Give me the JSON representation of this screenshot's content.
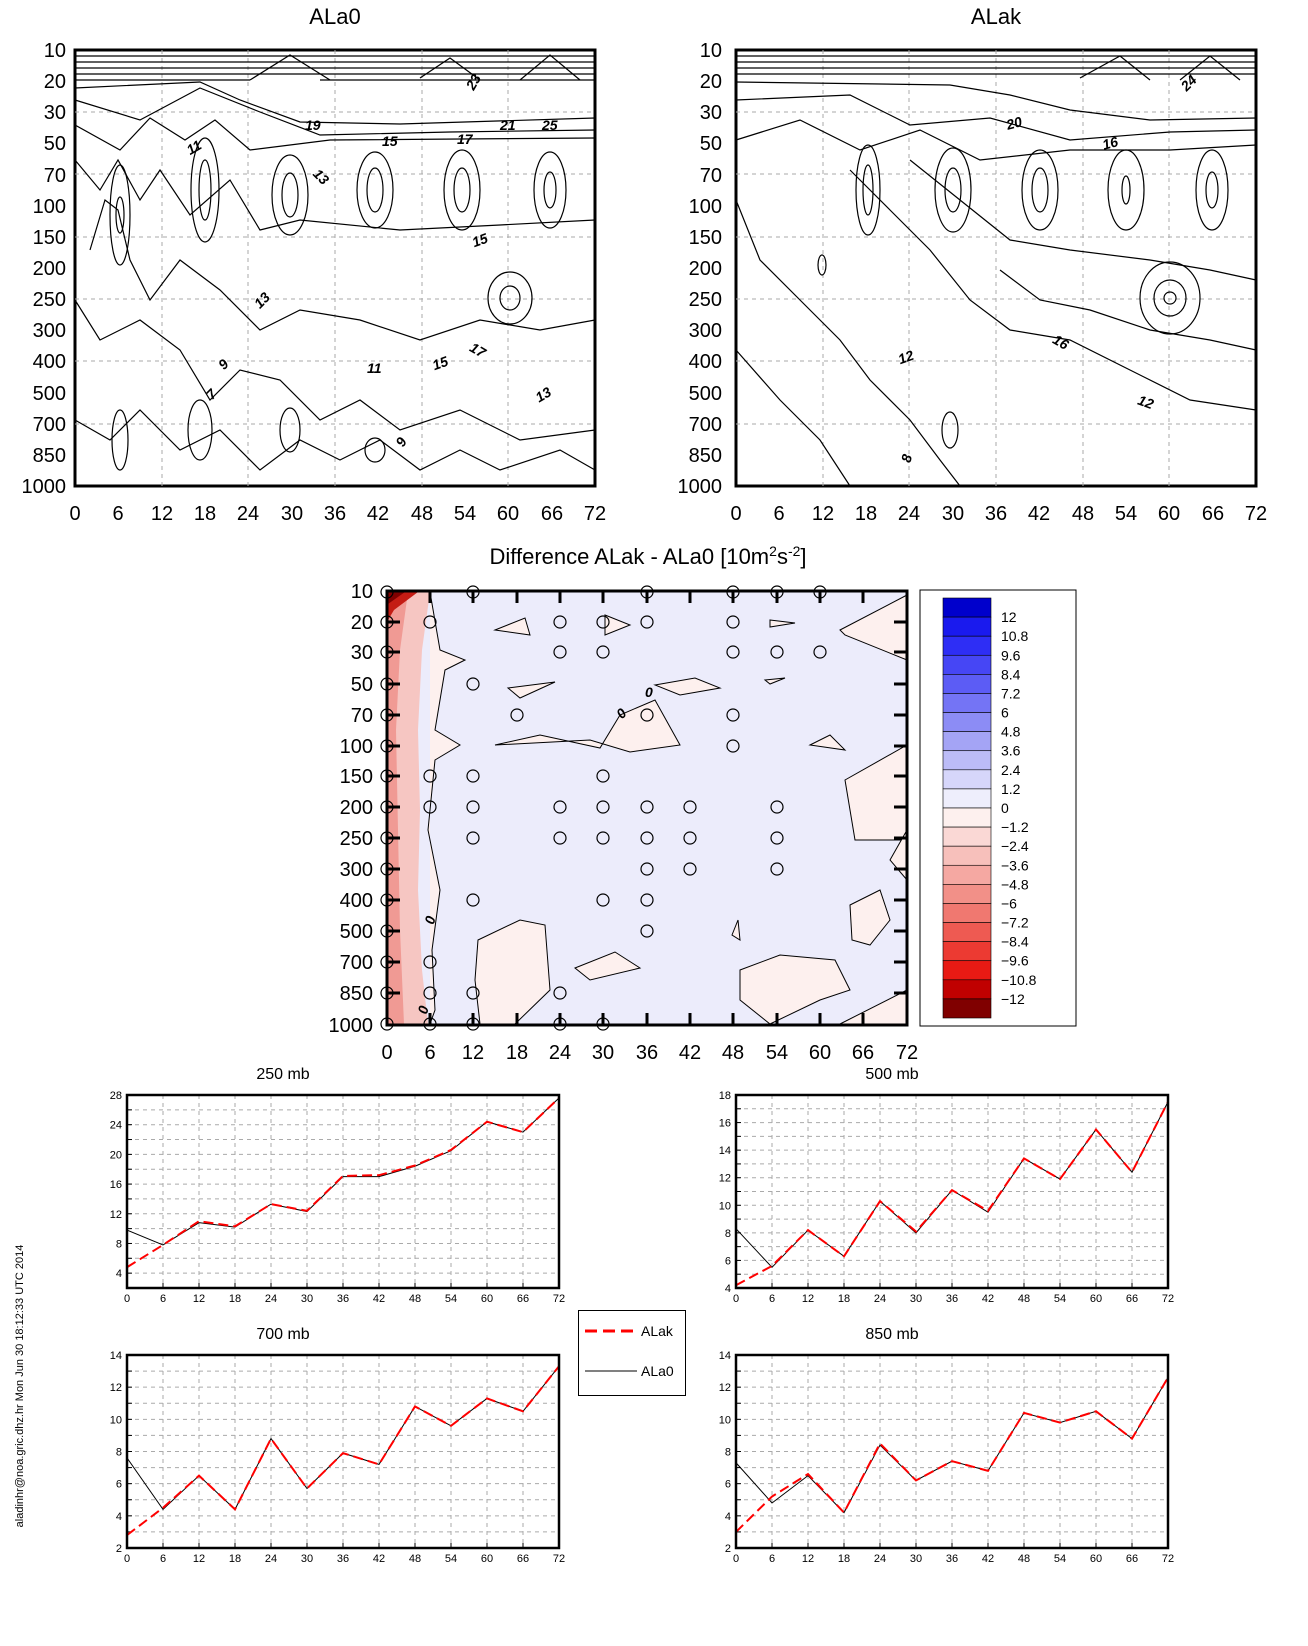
{
  "signature": "aladinhr@noa.gric.dhz.hr Mon Jun 30 18:12:33 UTC 2014",
  "contour_panels": [
    {
      "title": "ALa0",
      "x_ticks": [
        "0",
        "6",
        "12",
        "18",
        "24",
        "30",
        "36",
        "42",
        "48",
        "54",
        "60",
        "66",
        "72"
      ],
      "y_ticks": [
        "10",
        "20",
        "30",
        "50",
        "70",
        "100",
        "150",
        "200",
        "250",
        "300",
        "400",
        "500",
        "700",
        "850",
        "1000"
      ],
      "contour_labels": [
        "23",
        "19",
        "21",
        "25",
        "11",
        "15",
        "17",
        "13",
        "15",
        "13",
        "9",
        "7",
        "11",
        "15",
        "17",
        "13",
        "9"
      ]
    },
    {
      "title": "ALak",
      "x_ticks": [
        "0",
        "6",
        "12",
        "18",
        "24",
        "30",
        "36",
        "42",
        "48",
        "54",
        "60",
        "66",
        "72"
      ],
      "y_ticks": [
        "10",
        "20",
        "30",
        "50",
        "70",
        "100",
        "150",
        "200",
        "250",
        "300",
        "400",
        "500",
        "700",
        "850",
        "1000"
      ],
      "contour_labels": [
        "24",
        "20",
        "16",
        "12",
        "16",
        "12",
        "8"
      ]
    }
  ],
  "difference_panel": {
    "title": "Difference ALak - ALa0 [10m",
    "title_sup1": "2",
    "title_mid": "s",
    "title_sup2": "-2",
    "title_end": "]",
    "x_ticks": [
      "0",
      "6",
      "12",
      "18",
      "24",
      "30",
      "36",
      "42",
      "48",
      "54",
      "60",
      "66",
      "72"
    ],
    "y_ticks": [
      "10",
      "20",
      "30",
      "50",
      "70",
      "100",
      "150",
      "200",
      "250",
      "300",
      "400",
      "500",
      "700",
      "850",
      "1000"
    ],
    "contour_labels": [
      "0",
      "0",
      "0",
      "0"
    ],
    "colorbar_labels": [
      "12",
      "10.8",
      "9.6",
      "8.4",
      "7.2",
      "6",
      "4.8",
      "3.6",
      "2.4",
      "1.2",
      "0",
      "−1.2",
      "−2.4",
      "−3.6",
      "−4.8",
      "−6",
      "−7.2",
      "−8.4",
      "−9.6",
      "−10.8",
      "−12"
    ],
    "colorbar_colors": [
      "#0000cc",
      "#1a1aee",
      "#2e2ef5",
      "#4646f5",
      "#5c5cf5",
      "#7474f5",
      "#8c8cf5",
      "#a4a4f5",
      "#bcbcf7",
      "#d6d6fa",
      "#eeeefc",
      "#fdf0ee",
      "#fad8d5",
      "#f7c0bb",
      "#f5a8a2",
      "#f29088",
      "#f07870",
      "#ee5a52",
      "#ec3a32",
      "#e81a14",
      "#c00000",
      "#800000"
    ]
  },
  "legend": {
    "items": [
      {
        "label": "ALak",
        "color": "#ff0000",
        "dash": true
      },
      {
        "label": "ALa0",
        "color": "#000000",
        "dash": false
      }
    ]
  },
  "chart_data": [
    {
      "type": "line",
      "title": "250 mb",
      "x": [
        0,
        6,
        12,
        18,
        24,
        30,
        36,
        42,
        48,
        54,
        60,
        66,
        72
      ],
      "ylim": [
        2,
        28
      ],
      "y_ticks": [
        "4",
        "8",
        "12",
        "16",
        "20",
        "24",
        "28"
      ],
      "series": [
        {
          "name": "ALak",
          "values": [
            4.8,
            7.8,
            11.0,
            10.3,
            13.3,
            12.4,
            17.1,
            17.2,
            18.5,
            20.6,
            24.4,
            23.0,
            27.6
          ]
        },
        {
          "name": "ALa0",
          "values": [
            9.8,
            7.8,
            10.8,
            10.2,
            13.3,
            12.3,
            17.0,
            17.0,
            18.4,
            20.5,
            24.4,
            23.0,
            27.6
          ]
        }
      ]
    },
    {
      "type": "line",
      "title": "500 mb",
      "x": [
        0,
        6,
        12,
        18,
        24,
        30,
        36,
        42,
        48,
        54,
        60,
        66,
        72
      ],
      "ylim": [
        4,
        18
      ],
      "y_ticks": [
        "4",
        "6",
        "8",
        "10",
        "12",
        "14",
        "16",
        "18"
      ],
      "series": [
        {
          "name": "ALak",
          "values": [
            4.2,
            5.6,
            8.2,
            6.3,
            10.3,
            8.1,
            11.1,
            9.6,
            13.4,
            11.9,
            15.5,
            12.4,
            17.5
          ]
        },
        {
          "name": "ALa0",
          "values": [
            8.3,
            5.5,
            8.2,
            6.3,
            10.3,
            8.0,
            11.1,
            9.5,
            13.4,
            11.9,
            15.5,
            12.4,
            17.5
          ]
        }
      ]
    },
    {
      "type": "line",
      "title": "700 mb",
      "x": [
        0,
        6,
        12,
        18,
        24,
        30,
        36,
        42,
        48,
        54,
        60,
        66,
        72
      ],
      "ylim": [
        2,
        14
      ],
      "y_ticks": [
        "2",
        "4",
        "6",
        "8",
        "10",
        "12",
        "14"
      ],
      "series": [
        {
          "name": "ALak",
          "values": [
            2.8,
            4.5,
            6.5,
            4.4,
            8.8,
            5.7,
            7.9,
            7.2,
            10.8,
            9.6,
            11.3,
            10.5,
            13.3
          ]
        },
        {
          "name": "ALa0",
          "values": [
            7.6,
            4.4,
            6.5,
            4.4,
            8.8,
            5.7,
            7.9,
            7.2,
            10.8,
            9.6,
            11.3,
            10.5,
            13.3
          ]
        }
      ]
    },
    {
      "type": "line",
      "title": "850 mb",
      "x": [
        0,
        6,
        12,
        18,
        24,
        30,
        36,
        42,
        48,
        54,
        60,
        66,
        72
      ],
      "ylim": [
        2,
        14
      ],
      "y_ticks": [
        "2",
        "4",
        "6",
        "8",
        "10",
        "12",
        "14"
      ],
      "series": [
        {
          "name": "ALak",
          "values": [
            3.0,
            5.2,
            6.6,
            4.2,
            8.5,
            6.2,
            7.4,
            6.8,
            10.4,
            9.8,
            10.5,
            8.8,
            12.6
          ]
        },
        {
          "name": "ALa0",
          "values": [
            7.3,
            4.8,
            6.5,
            4.2,
            8.4,
            6.2,
            7.4,
            6.8,
            10.4,
            9.8,
            10.5,
            8.8,
            12.6
          ]
        }
      ]
    }
  ]
}
